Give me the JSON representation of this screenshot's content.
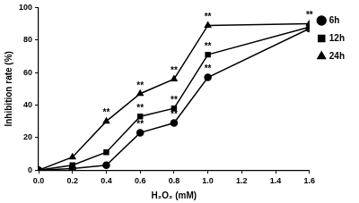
{
  "chart_data": {
    "type": "line",
    "x_label": "H₂O₂ (mM)",
    "y_label": "Inhibition rate (%)",
    "x": [
      0,
      0.2,
      0.4,
      0.6,
      0.8,
      1.0,
      1.6
    ],
    "series": [
      {
        "name": "6h",
        "color": "#000000",
        "marker": "circle",
        "line_style": "solid",
        "values": [
          0,
          1,
          3,
          23,
          29,
          57,
          87
        ]
      },
      {
        "name": "12h",
        "color": "#000000",
        "marker": "square",
        "line_style": "solid",
        "values": [
          0,
          3,
          11,
          33,
          38,
          71,
          88
        ]
      },
      {
        "name": "24h",
        "color": "#000000",
        "marker": "triangle",
        "line_style": "solid",
        "values": [
          0,
          8,
          30,
          47,
          56,
          89,
          90
        ]
      }
    ],
    "xlim": [
      0,
      1.6
    ],
    "xticks": [
      {
        "value": 0,
        "label": "0.0"
      },
      0.2,
      0.4,
      0.6,
      0.8,
      {
        "value": 1.0,
        "label": "1.0"
      },
      1.2,
      1.4,
      1.6
    ],
    "ylim": [
      0,
      100
    ],
    "yticks": [
      0,
      20,
      40,
      60,
      80,
      100
    ],
    "grid": false,
    "legend": "right",
    "annotations": [
      {
        "text": "**",
        "series": "24h",
        "x": 0.4
      },
      {
        "text": "**",
        "series": "24h",
        "x": 0.6
      },
      {
        "text": "**",
        "series": "12h",
        "x": 0.6
      },
      {
        "text": "**",
        "series": "6h",
        "x": 0.6
      },
      {
        "text": "**",
        "series": "24h",
        "x": 0.8
      },
      {
        "text": "**",
        "series": "12h",
        "x": 0.8
      },
      {
        "text": "**",
        "series": "6h",
        "x": 0.8
      },
      {
        "text": "**",
        "series": "24h",
        "x": 1.0
      },
      {
        "text": "**",
        "series": "12h",
        "x": 1.0
      },
      {
        "text": "**",
        "series": "6h",
        "x": 1.0
      },
      {
        "text": "**",
        "series": "24h",
        "x": 1.6
      }
    ]
  }
}
